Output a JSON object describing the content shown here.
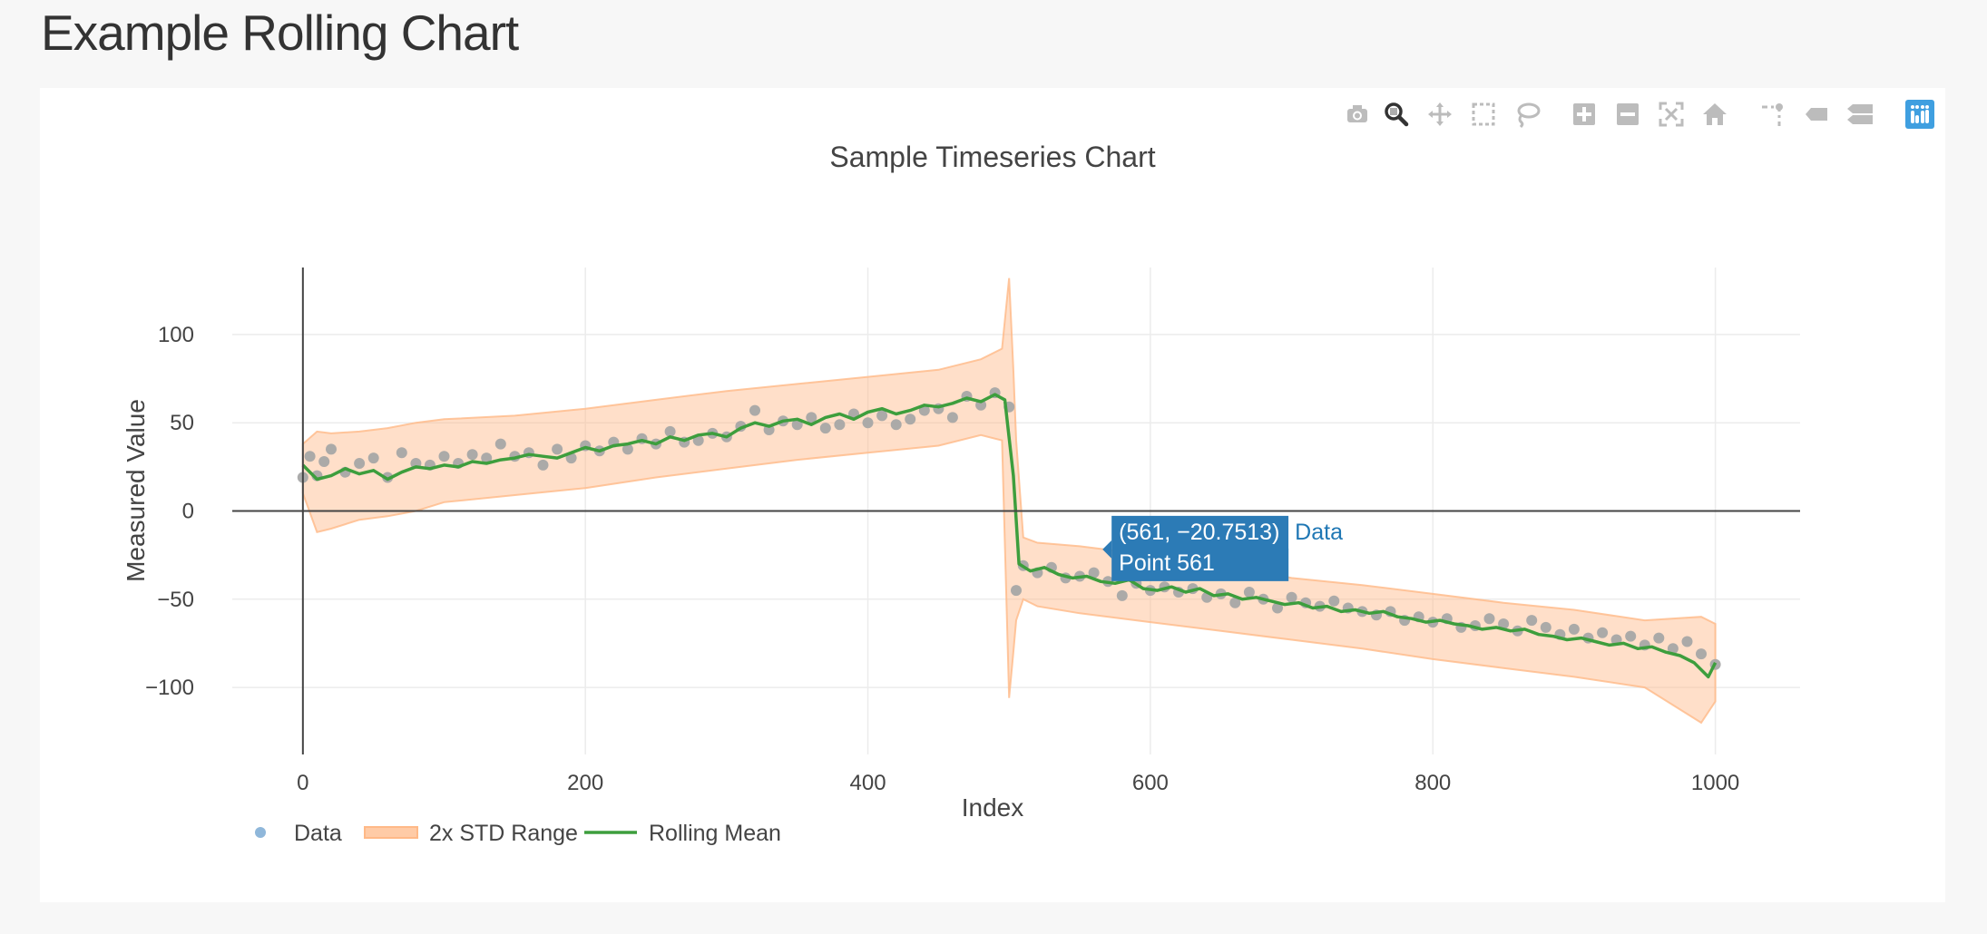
{
  "page": {
    "title": "Example Rolling Chart"
  },
  "modebar": {
    "buttons": [
      {
        "name": "camera-icon",
        "active": false
      },
      {
        "name": "zoom-icon",
        "active": true
      },
      {
        "name": "pan-icon",
        "active": false
      },
      {
        "name": "box-select-icon",
        "active": false
      },
      {
        "name": "lasso-select-icon",
        "active": false
      },
      {
        "name": "zoom-in-icon",
        "active": false
      },
      {
        "name": "zoom-out-icon",
        "active": false
      },
      {
        "name": "autoscale-icon",
        "active": false
      },
      {
        "name": "reset-axes-icon",
        "active": false
      },
      {
        "name": "toggle-spike-lines-icon",
        "active": false
      },
      {
        "name": "hover-closest-icon",
        "active": false
      },
      {
        "name": "hover-compare-icon",
        "active": false
      },
      {
        "name": "plotly-logo-icon",
        "active": false
      }
    ]
  },
  "tooltip": {
    "text": "(561, −20.7513)",
    "point_label": "Point 561",
    "series": "Data",
    "x": 561,
    "y": -20.7513
  },
  "colors": {
    "data": "#a6a6a6",
    "data_legend": "#8fb7da",
    "band": "#ffb987",
    "band_legend": "#ffcba6",
    "mean": "#3d9e3d",
    "tooltip_bg": "#2c7bb6",
    "tooltip_label": "#1f77b4",
    "active_icon": "#333333",
    "icon": "#bcbcbc",
    "logo": "#3f9fe0"
  },
  "chart_data": {
    "type": "scatter",
    "title": "Sample Timeseries Chart",
    "xlabel": "Index",
    "ylabel": "Measured Value",
    "xlim": [
      -50,
      1060
    ],
    "ylim": [
      -138,
      138
    ],
    "xticks": [
      0,
      200,
      400,
      600,
      800,
      1000
    ],
    "yticks": [
      -100,
      -50,
      0,
      50,
      100
    ],
    "grid": true,
    "legend_position": "bottom-left",
    "series": [
      {
        "name": "Data",
        "type": "scatter",
        "points": [
          [
            0,
            19
          ],
          [
            5,
            31
          ],
          [
            10,
            20
          ],
          [
            15,
            28
          ],
          [
            20,
            35
          ],
          [
            30,
            22
          ],
          [
            40,
            27
          ],
          [
            50,
            30
          ],
          [
            60,
            19
          ],
          [
            70,
            33
          ],
          [
            80,
            27
          ],
          [
            90,
            26
          ],
          [
            100,
            31
          ],
          [
            110,
            27
          ],
          [
            120,
            32
          ],
          [
            130,
            30
          ],
          [
            140,
            38
          ],
          [
            150,
            31
          ],
          [
            160,
            33
          ],
          [
            170,
            26
          ],
          [
            180,
            35
          ],
          [
            190,
            30
          ],
          [
            200,
            37
          ],
          [
            210,
            34
          ],
          [
            220,
            39
          ],
          [
            230,
            35
          ],
          [
            240,
            41
          ],
          [
            250,
            38
          ],
          [
            260,
            45
          ],
          [
            270,
            39
          ],
          [
            280,
            40
          ],
          [
            290,
            44
          ],
          [
            300,
            42
          ],
          [
            310,
            48
          ],
          [
            320,
            57
          ],
          [
            330,
            46
          ],
          [
            340,
            51
          ],
          [
            350,
            49
          ],
          [
            360,
            53
          ],
          [
            370,
            47
          ],
          [
            380,
            49
          ],
          [
            390,
            55
          ],
          [
            400,
            50
          ],
          [
            410,
            54
          ],
          [
            420,
            49
          ],
          [
            430,
            52
          ],
          [
            440,
            57
          ],
          [
            450,
            58
          ],
          [
            460,
            53
          ],
          [
            470,
            65
          ],
          [
            480,
            60
          ],
          [
            490,
            67
          ],
          [
            500,
            59
          ],
          [
            505,
            -45
          ],
          [
            510,
            -31
          ],
          [
            520,
            -35
          ],
          [
            530,
            -32
          ],
          [
            540,
            -38
          ],
          [
            550,
            -37
          ],
          [
            560,
            -35
          ],
          [
            570,
            -40
          ],
          [
            580,
            -48
          ],
          [
            590,
            -41
          ],
          [
            600,
            -45
          ],
          [
            610,
            -43
          ],
          [
            620,
            -46
          ],
          [
            630,
            -44
          ],
          [
            640,
            -49
          ],
          [
            650,
            -47
          ],
          [
            660,
            -52
          ],
          [
            670,
            -46
          ],
          [
            680,
            -50
          ],
          [
            690,
            -55
          ],
          [
            700,
            -49
          ],
          [
            710,
            -52
          ],
          [
            720,
            -54
          ],
          [
            730,
            -51
          ],
          [
            740,
            -55
          ],
          [
            750,
            -57
          ],
          [
            760,
            -59
          ],
          [
            770,
            -57
          ],
          [
            780,
            -62
          ],
          [
            790,
            -60
          ],
          [
            800,
            -63
          ],
          [
            810,
            -61
          ],
          [
            820,
            -66
          ],
          [
            830,
            -65
          ],
          [
            840,
            -61
          ],
          [
            850,
            -64
          ],
          [
            860,
            -68
          ],
          [
            870,
            -62
          ],
          [
            880,
            -66
          ],
          [
            890,
            -70
          ],
          [
            900,
            -67
          ],
          [
            910,
            -72
          ],
          [
            920,
            -69
          ],
          [
            930,
            -73
          ],
          [
            940,
            -71
          ],
          [
            950,
            -76
          ],
          [
            960,
            -72
          ],
          [
            970,
            -78
          ],
          [
            980,
            -74
          ],
          [
            990,
            -81
          ],
          [
            1000,
            -87
          ]
        ]
      },
      {
        "name": "2x STD Range",
        "type": "band",
        "x": [
          0,
          10,
          20,
          40,
          60,
          80,
          100,
          150,
          200,
          250,
          300,
          350,
          400,
          450,
          480,
          495,
          500,
          503,
          505,
          510,
          520,
          550,
          600,
          650,
          700,
          750,
          800,
          850,
          900,
          950,
          990,
          1000
        ],
        "upper": [
          38,
          45,
          44,
          45,
          47,
          50,
          52,
          54,
          58,
          63,
          68,
          72,
          76,
          80,
          86,
          92,
          132,
          80,
          40,
          -15,
          -18,
          -20,
          -25,
          -30,
          -38,
          -42,
          -47,
          -52,
          -56,
          -62,
          -60,
          -64
        ],
        "lower": [
          10,
          -12,
          -10,
          -5,
          -3,
          0,
          5,
          9,
          13,
          19,
          24,
          29,
          33,
          37,
          43,
          40,
          -106,
          -80,
          -62,
          -50,
          -54,
          -58,
          -63,
          -68,
          -73,
          -78,
          -84,
          -89,
          -94,
          -100,
          -120,
          -108
        ]
      },
      {
        "name": "Rolling Mean",
        "type": "line",
        "points": [
          [
            0,
            26
          ],
          [
            10,
            18
          ],
          [
            20,
            20
          ],
          [
            30,
            24
          ],
          [
            40,
            21
          ],
          [
            50,
            23
          ],
          [
            60,
            18
          ],
          [
            70,
            22
          ],
          [
            80,
            25
          ],
          [
            90,
            24
          ],
          [
            100,
            26
          ],
          [
            110,
            25
          ],
          [
            120,
            28
          ],
          [
            130,
            27
          ],
          [
            140,
            29
          ],
          [
            150,
            30
          ],
          [
            160,
            32
          ],
          [
            170,
            31
          ],
          [
            180,
            30
          ],
          [
            190,
            33
          ],
          [
            200,
            36
          ],
          [
            210,
            34
          ],
          [
            220,
            37
          ],
          [
            230,
            38
          ],
          [
            240,
            40
          ],
          [
            250,
            38
          ],
          [
            260,
            42
          ],
          [
            270,
            40
          ],
          [
            280,
            43
          ],
          [
            290,
            44
          ],
          [
            300,
            42
          ],
          [
            310,
            47
          ],
          [
            320,
            50
          ],
          [
            330,
            48
          ],
          [
            340,
            51
          ],
          [
            350,
            52
          ],
          [
            360,
            49
          ],
          [
            370,
            53
          ],
          [
            380,
            55
          ],
          [
            390,
            52
          ],
          [
            400,
            56
          ],
          [
            410,
            58
          ],
          [
            420,
            55
          ],
          [
            430,
            57
          ],
          [
            440,
            60
          ],
          [
            450,
            59
          ],
          [
            460,
            61
          ],
          [
            470,
            64
          ],
          [
            480,
            62
          ],
          [
            490,
            66
          ],
          [
            497,
            63
          ],
          [
            503,
            20
          ],
          [
            507,
            -30
          ],
          [
            515,
            -34
          ],
          [
            525,
            -32
          ],
          [
            535,
            -36
          ],
          [
            545,
            -38
          ],
          [
            555,
            -37
          ],
          [
            565,
            -40
          ],
          [
            575,
            -41
          ],
          [
            585,
            -39
          ],
          [
            595,
            -44
          ],
          [
            605,
            -45
          ],
          [
            615,
            -43
          ],
          [
            625,
            -46
          ],
          [
            635,
            -44
          ],
          [
            645,
            -48
          ],
          [
            655,
            -47
          ],
          [
            665,
            -50
          ],
          [
            675,
            -49
          ],
          [
            685,
            -51
          ],
          [
            695,
            -53
          ],
          [
            705,
            -52
          ],
          [
            715,
            -55
          ],
          [
            725,
            -54
          ],
          [
            735,
            -57
          ],
          [
            745,
            -56
          ],
          [
            755,
            -58
          ],
          [
            765,
            -57
          ],
          [
            775,
            -60
          ],
          [
            785,
            -61
          ],
          [
            795,
            -63
          ],
          [
            805,
            -62
          ],
          [
            815,
            -64
          ],
          [
            825,
            -65
          ],
          [
            835,
            -67
          ],
          [
            845,
            -66
          ],
          [
            855,
            -68
          ],
          [
            865,
            -67
          ],
          [
            875,
            -70
          ],
          [
            885,
            -71
          ],
          [
            895,
            -73
          ],
          [
            905,
            -72
          ],
          [
            915,
            -74
          ],
          [
            925,
            -76
          ],
          [
            935,
            -75
          ],
          [
            945,
            -78
          ],
          [
            955,
            -77
          ],
          [
            965,
            -80
          ],
          [
            975,
            -82
          ],
          [
            985,
            -86
          ],
          [
            995,
            -94
          ],
          [
            1000,
            -86
          ]
        ]
      }
    ]
  }
}
